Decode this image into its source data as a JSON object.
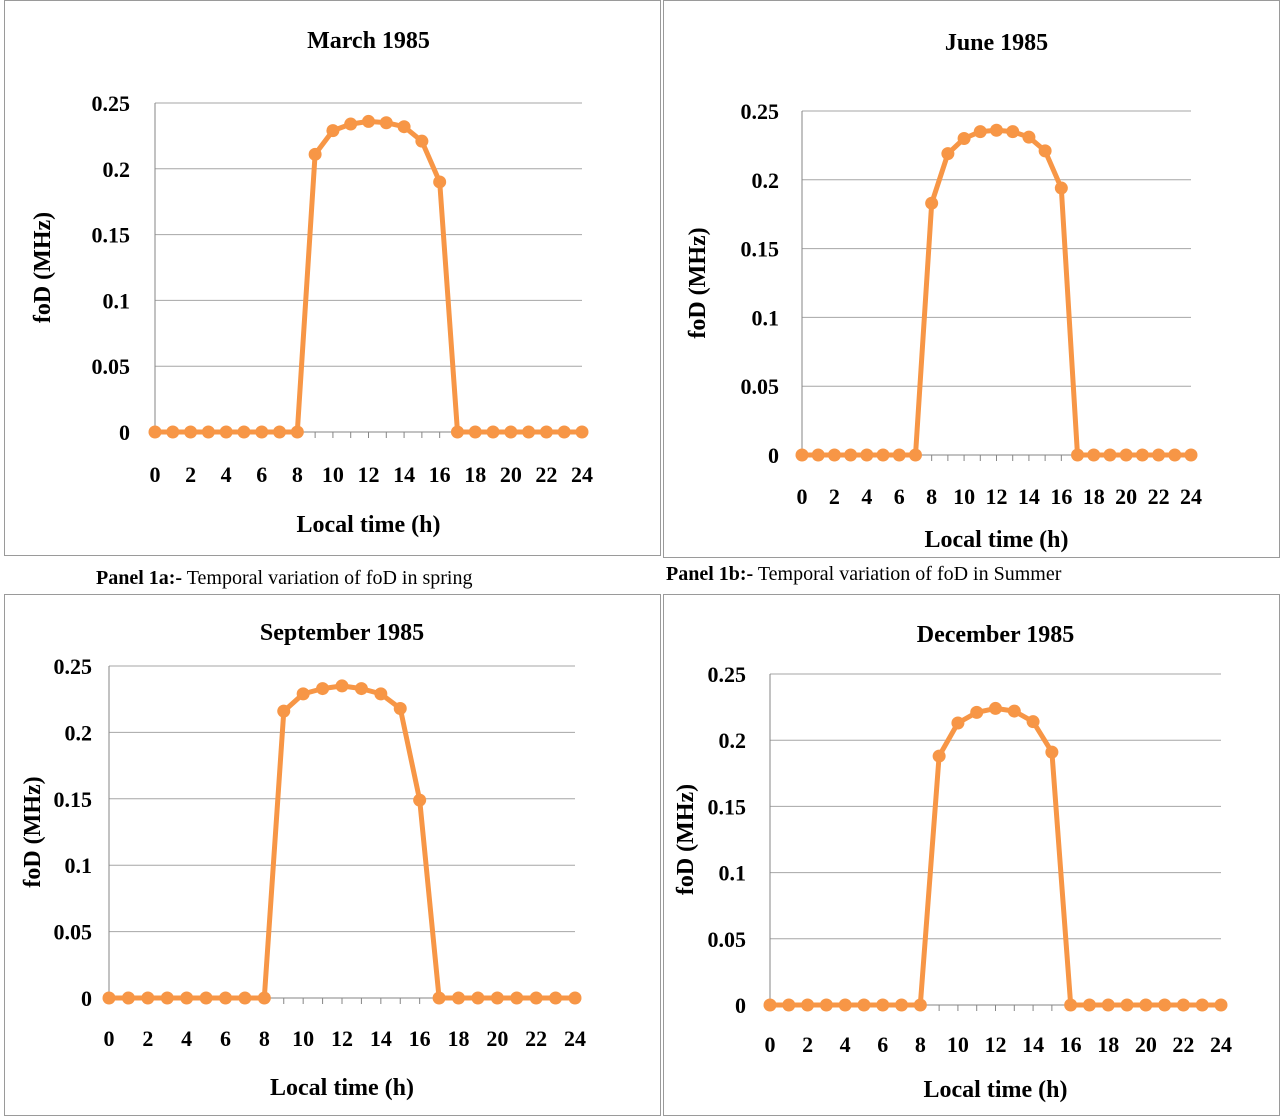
{
  "captions": [
    {
      "label": "Panel 1a:-",
      "text": " Temporal variation of foD in spring"
    },
    {
      "label": "Panel 1b:-",
      "text": " Temporal variation of foD in Summer"
    }
  ],
  "colors": {
    "series": "#f79646",
    "grid": "#a6a6a6",
    "axis": "#868686",
    "frame": "#9a9a9a"
  },
  "chart_data": [
    {
      "type": "line",
      "title": "March 1985",
      "xlabel": "Local time (h)",
      "ylabel": "foD (MHz)",
      "x": [
        0,
        1,
        2,
        3,
        4,
        5,
        6,
        7,
        8,
        9,
        10,
        11,
        12,
        13,
        14,
        15,
        16,
        17,
        18,
        19,
        20,
        21,
        22,
        23,
        24
      ],
      "xticks": [
        "0",
        "2",
        "4",
        "6",
        "8",
        "10",
        "12",
        "14",
        "16",
        "18",
        "20",
        "22",
        "24"
      ],
      "yticks": [
        "0",
        "0.05",
        "0.1",
        "0.15",
        "0.2",
        "0.25"
      ],
      "ylim": [
        0,
        0.25
      ],
      "grid": true,
      "series": [
        {
          "values": [
            0,
            0,
            0,
            0,
            0,
            0,
            0,
            0,
            0,
            0.211,
            0.229,
            0.234,
            0.236,
            0.235,
            0.232,
            0.221,
            0.19,
            0,
            0,
            0,
            0,
            0,
            0,
            0,
            0
          ]
        }
      ]
    },
    {
      "type": "line",
      "title": "June 1985",
      "xlabel": "Local time (h)",
      "ylabel": "foD (MHz)",
      "x": [
        0,
        1,
        2,
        3,
        4,
        5,
        6,
        7,
        8,
        9,
        10,
        11,
        12,
        13,
        14,
        15,
        16,
        17,
        18,
        19,
        20,
        21,
        22,
        23,
        24
      ],
      "xticks": [
        "0",
        "2",
        "4",
        "6",
        "8",
        "10",
        "12",
        "14",
        "16",
        "18",
        "20",
        "22",
        "24"
      ],
      "yticks": [
        "0",
        "0.05",
        "0.1",
        "0.15",
        "0.2",
        "0.25"
      ],
      "ylim": [
        0,
        0.25
      ],
      "grid": true,
      "series": [
        {
          "values": [
            0,
            0,
            0,
            0,
            0,
            0,
            0,
            0,
            0.183,
            0.219,
            0.23,
            0.235,
            0.236,
            0.235,
            0.231,
            0.221,
            0.194,
            0,
            0,
            0,
            0,
            0,
            0,
            0,
            0
          ]
        }
      ]
    },
    {
      "type": "line",
      "title": "September 1985",
      "xlabel": "Local time (h)",
      "ylabel": "foD (MHz)",
      "x": [
        0,
        1,
        2,
        3,
        4,
        5,
        6,
        7,
        8,
        9,
        10,
        11,
        12,
        13,
        14,
        15,
        16,
        17,
        18,
        19,
        20,
        21,
        22,
        23,
        24
      ],
      "xticks": [
        "0",
        "2",
        "4",
        "6",
        "8",
        "10",
        "12",
        "14",
        "16",
        "18",
        "20",
        "22",
        "24"
      ],
      "yticks": [
        "0",
        "0.05",
        "0.1",
        "0.15",
        "0.2",
        "0.25"
      ],
      "ylim": [
        0,
        0.25
      ],
      "grid": true,
      "series": [
        {
          "values": [
            0,
            0,
            0,
            0,
            0,
            0,
            0,
            0,
            0,
            0.216,
            0.229,
            0.233,
            0.235,
            0.233,
            0.229,
            0.218,
            0.149,
            0,
            0,
            0,
            0,
            0,
            0,
            0,
            0
          ]
        }
      ]
    },
    {
      "type": "line",
      "title": "December 1985",
      "xlabel": "Local time (h)",
      "ylabel": "foD (MHz)",
      "x": [
        0,
        1,
        2,
        3,
        4,
        5,
        6,
        7,
        8,
        9,
        10,
        11,
        12,
        13,
        14,
        15,
        16,
        17,
        18,
        19,
        20,
        21,
        22,
        23,
        24
      ],
      "xticks": [
        "0",
        "2",
        "4",
        "6",
        "8",
        "10",
        "12",
        "14",
        "16",
        "18",
        "20",
        "22",
        "24"
      ],
      "yticks": [
        "0",
        "0.05",
        "0.1",
        "0.15",
        "0.2",
        "0.25"
      ],
      "ylim": [
        0,
        0.25
      ],
      "grid": true,
      "series": [
        {
          "values": [
            0,
            0,
            0,
            0,
            0,
            0,
            0,
            0,
            0,
            0.188,
            0.213,
            0.221,
            0.224,
            0.222,
            0.214,
            0.191,
            0,
            0,
            0,
            0,
            0,
            0,
            0,
            0,
            0
          ]
        }
      ]
    }
  ]
}
